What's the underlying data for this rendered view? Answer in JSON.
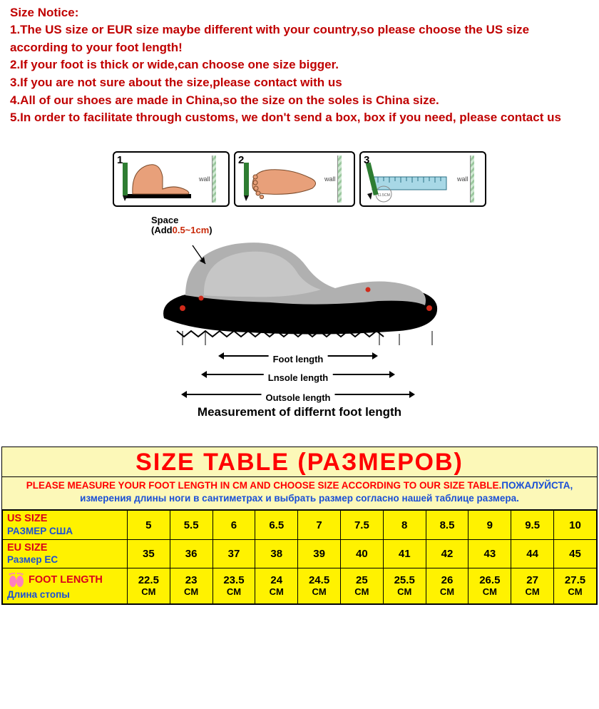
{
  "notice": {
    "title_text": "Size Notice:",
    "title_color": "#c00000",
    "title_fontsize": 17,
    "items": [
      "1.The US size or EUR size maybe different with your country,so please choose the US size according to your foot length!",
      "2.If your foot is thick or wide,can choose one size bigger.",
      "3.If you are not sure about the size,please contact with us",
      "4.All of our shoes are made in China,so the size on the soles is China size.",
      "5.In order to facilitate through customs, we don't send a box, box if you need, please contact us"
    ],
    "item_color": "#c00000",
    "item_fontsize": 17
  },
  "diagram": {
    "steps": {
      "wall_label": "wall",
      "step1_num": "1",
      "step2_num": "2",
      "step3_num": "3",
      "ruler_value": "11.5CM",
      "foot_fill": "#e8a07a",
      "pencil_fill": "#2e7d32",
      "ruler_fill": "#a8d8e6"
    },
    "shoe": {
      "space_label": "Space",
      "space_add_prefix": "(Add",
      "space_range": "0.5~1cm",
      "space_suffix": ")",
      "measures": [
        {
          "label": "Foot length",
          "width_pct": 56
        },
        {
          "label": "Lnsole length",
          "width_pct": 68
        },
        {
          "label": "Outsole length",
          "width_pct": 82
        }
      ],
      "shoe_top_fill": "#b0b0b0",
      "shoe_inner_fill": "#c6c6c6",
      "sole_fill": "#000000",
      "dot_color": "#d02a1a",
      "caption": "Measurement of differnt foot length"
    }
  },
  "size_table": {
    "header_text": "SIZE TABLE (РАЗМЕРОВ)",
    "header_color": "#ff0000",
    "header_bg": "#fcf8b8",
    "header_fontsize": 34,
    "instruction_en": "PLEASE MEASURE YOUR FOOT LENGTH IN CM AND CHOOSE SIZE ACCORDING TO OUR SIZE TABLE.",
    "instruction_en_color": "#ff0000",
    "instruction_ru": "ПОЖАЛУЙСТА, измерения длины ноги в сантиметрах и выбрать размер согласно нашей таблице размера.",
    "instruction_ru_color": "#1a4fd6",
    "instruction_bg": "#fcf8b8",
    "instruction_fontsize": 13.5,
    "label_col_width_pct": 21,
    "row_bg": "#fff200",
    "rows": [
      {
        "label_en": "US SIZE",
        "label_ru": "РАЗМЕР США",
        "label_color": "#d9001b",
        "values": [
          "5",
          "5.5",
          "6",
          "6.5",
          "7",
          "7.5",
          "8",
          "8.5",
          "9",
          "9.5",
          "10"
        ],
        "value_color": "#000000",
        "has_unit": false
      },
      {
        "label_en": "EU SIZE",
        "label_ru": "Размер ЕС",
        "label_color": "#d9001b",
        "values": [
          "35",
          "36",
          "37",
          "38",
          "39",
          "40",
          "41",
          "42",
          "43",
          "44",
          "45"
        ],
        "value_color": "#000000",
        "has_unit": false
      },
      {
        "label_en": "FOOT LENGTH",
        "label_ru": "Длина стопы",
        "label_color": "#d9001b",
        "values": [
          "22.5",
          "23",
          "23.5",
          "24",
          "24.5",
          "25",
          "25.5",
          "26",
          "26.5",
          "27",
          "27.5"
        ],
        "value_color": "#000000",
        "has_unit": true,
        "unit": "CM",
        "has_icon": true
      }
    ]
  }
}
